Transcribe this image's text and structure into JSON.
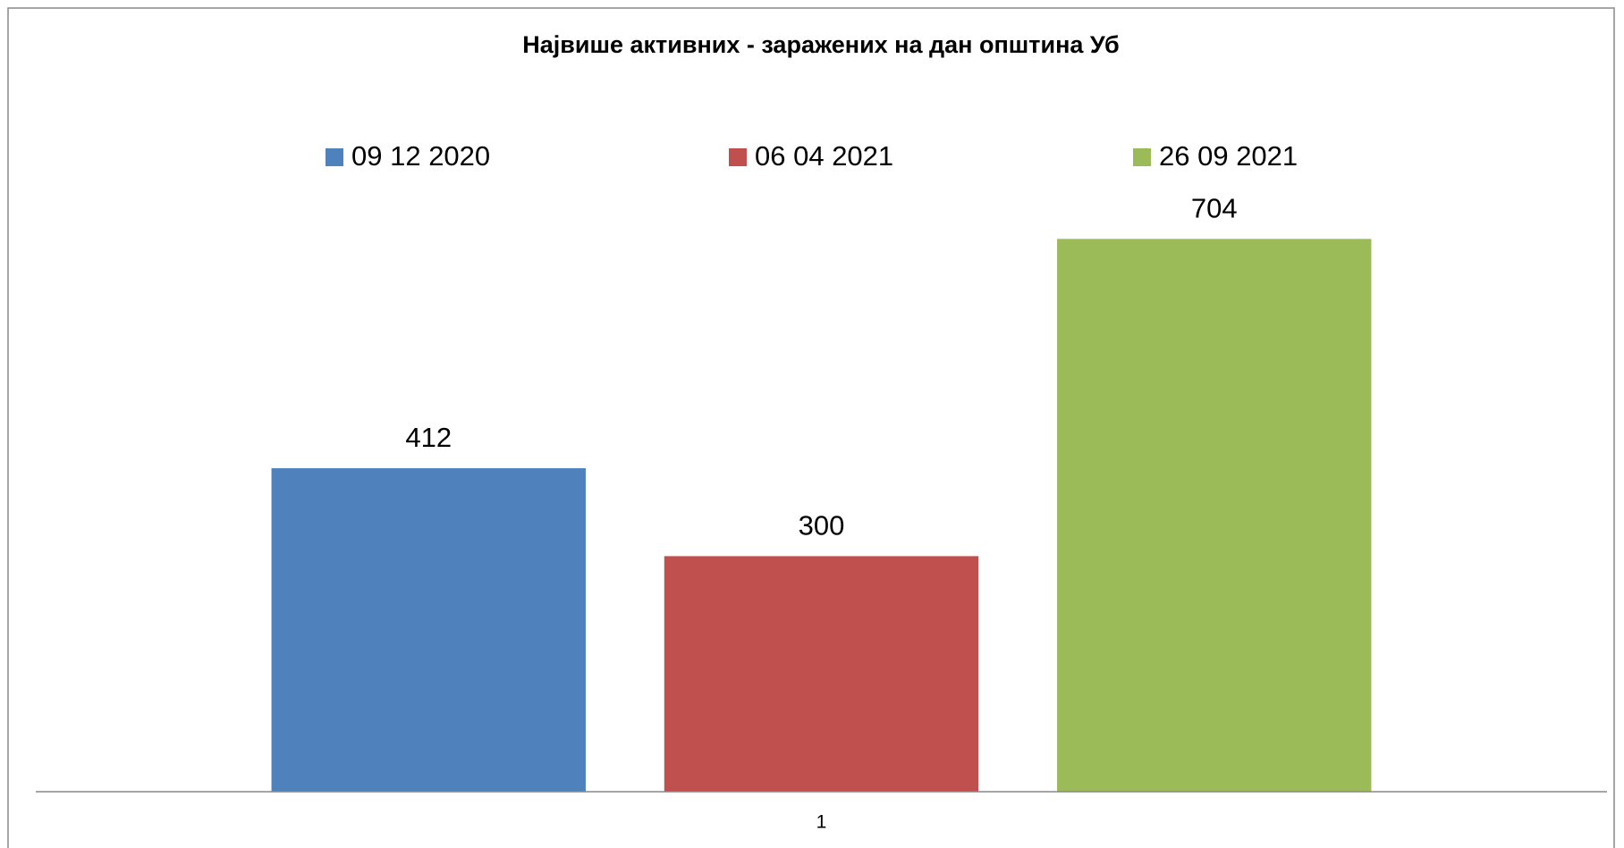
{
  "chart_data": {
    "type": "bar",
    "title": "Највише активних - заражених на дан општина Уб",
    "categories": [
      "1"
    ],
    "series": [
      {
        "name": "09 12 2020",
        "color": "#4f81bd",
        "values": [
          412
        ]
      },
      {
        "name": "06 04 2021",
        "color": "#c0504d",
        "values": [
          300
        ]
      },
      {
        "name": "26 09 2021",
        "color": "#9bbb59",
        "values": [
          704
        ]
      }
    ],
    "ylim": [
      0,
      800
    ],
    "legend": "top"
  }
}
